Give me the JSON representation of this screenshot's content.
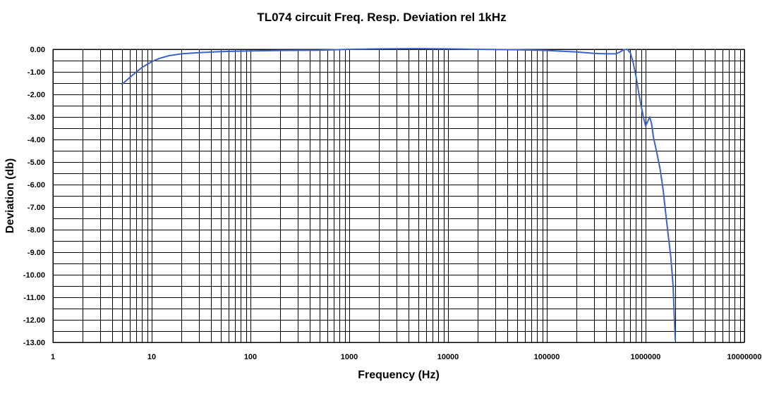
{
  "chart_data": {
    "type": "line",
    "title": "TL074 circuit Freq. Resp. Deviation rel 1kHz",
    "xlabel": "Frequency (Hz)",
    "ylabel": "Deviation (db)",
    "xscale": "log",
    "xlim": [
      1,
      10000000
    ],
    "ylim": [
      -13,
      0
    ],
    "grid": true,
    "x_tick_labels": [
      "1",
      "10",
      "100",
      "1000",
      "10000",
      "100000",
      "1000000",
      "10000000"
    ],
    "y_tick_labels": [
      "0.00",
      "-1.00",
      "-2.00",
      "-3.00",
      "-4.00",
      "-5.00",
      "-6.00",
      "-7.00",
      "-8.00",
      "-9.00",
      "-10.00",
      "-11.00",
      "-12.00",
      "-13.00"
    ],
    "line_color": "#3a64c8",
    "series": [
      {
        "x": [
          5,
          6,
          7,
          8,
          10,
          12,
          15,
          20,
          30,
          50,
          100,
          200,
          500,
          1000,
          2000,
          5000,
          10000,
          20000,
          50000,
          100000,
          200000,
          300000,
          400000,
          500000,
          550000,
          600000,
          650000,
          700000,
          750000,
          800000,
          850000,
          900000,
          950000,
          1000000,
          1050000,
          1100000,
          1150000,
          1200000,
          1300000,
          1400000,
          1500000,
          1600000,
          1700000,
          1800000,
          1900000,
          1950000,
          2000000
        ],
        "y": [
          -1.55,
          -1.25,
          -1.0,
          -0.8,
          -0.55,
          -0.4,
          -0.28,
          -0.2,
          -0.15,
          -0.1,
          -0.07,
          -0.05,
          -0.04,
          0.0,
          0.02,
          0.03,
          0.02,
          0.0,
          -0.02,
          -0.05,
          -0.12,
          -0.18,
          -0.2,
          -0.2,
          -0.12,
          -0.02,
          0.0,
          -0.15,
          -0.6,
          -1.2,
          -1.9,
          -2.5,
          -3.0,
          -3.4,
          -3.2,
          -3.0,
          -3.3,
          -3.9,
          -4.6,
          -5.3,
          -6.2,
          -7.3,
          -8.3,
          -9.2,
          -10.5,
          -11.8,
          -12.9
        ]
      }
    ]
  }
}
